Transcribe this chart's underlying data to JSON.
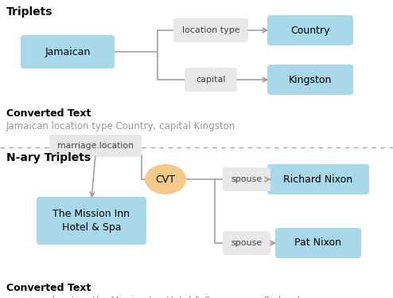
{
  "bg_color": "#ffffff",
  "fig_width": 4.94,
  "fig_height": 3.74,
  "dpi": 100,
  "node_blue": "#a8d8ea",
  "node_orange": "#f5c98a",
  "edge_box_color": "#e8e8e8",
  "arrow_color": "#999999",
  "section1_title": "Triplets",
  "section2_title": "N-ary Triplets",
  "converted_label": "Converted Text",
  "converted_text1": "Jamaican location type Country, capital Kingston",
  "converted_text2": "marriage location the Mission Inn Hotel & Spa, spouse Richard\nNixon, spouse Pat Nixon"
}
